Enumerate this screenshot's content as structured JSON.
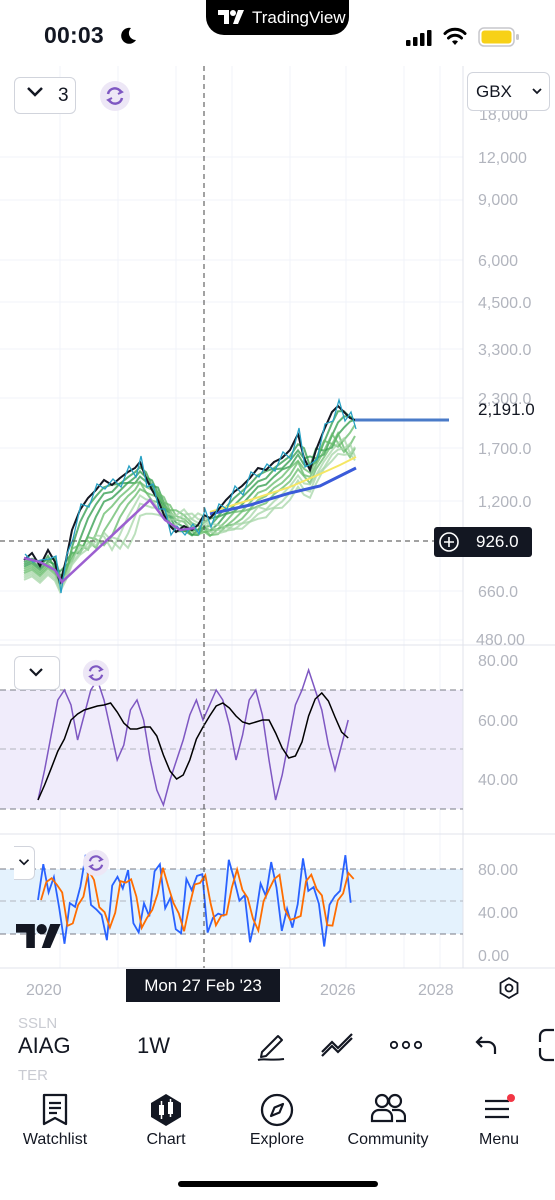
{
  "status_bar": {
    "time": "00:03",
    "app_pill": "TradingView",
    "moon_icon": "moon-icon",
    "battery_color": "#f7d117"
  },
  "chart": {
    "layout_count": "3",
    "currency": "GBX",
    "last_price_label": "2,191.0",
    "crosshair_price": "926.0",
    "crosshair_date": "Mon 27 Feb '23",
    "price_axis": [
      "12,000",
      "9,000",
      "6,000",
      "4,500.0",
      "3,300.0",
      "1,700.0",
      "1,200.0",
      "660.0",
      "480.00"
    ],
    "price_axis_partial_top": "18,000",
    "price_axis_partial_mid": "2,300.0",
    "x_axis": [
      "2020",
      "2026",
      "2028"
    ],
    "rsi_axis": [
      "80.00",
      "60.00",
      "40.00"
    ],
    "stoch_axis": [
      "80.00",
      "40.00",
      "0.00"
    ],
    "colors": {
      "ema_band": "#4caf50",
      "price": "#131722",
      "wave": "#2196f3",
      "rsi": "#7e57c2",
      "stoch_k": "#2962ff",
      "stoch_d": "#ff6d00",
      "ma_yellow": "#f5e663",
      "ma_blue": "#3a5bd9",
      "rsi_band": "#f0ecfb",
      "stoch_band": "#e4f2fd"
    }
  },
  "symbol_bar": {
    "prev_symbol": "SSLN",
    "symbol": "AIAG",
    "next_symbol": "TER",
    "interval": "1W"
  },
  "nav": [
    {
      "label": "Watchlist",
      "icon": "watchlist-icon"
    },
    {
      "label": "Chart",
      "icon": "chart-icon"
    },
    {
      "label": "Explore",
      "icon": "compass-icon"
    },
    {
      "label": "Community",
      "icon": "community-icon"
    },
    {
      "label": "Menu",
      "icon": "menu-icon"
    }
  ]
}
